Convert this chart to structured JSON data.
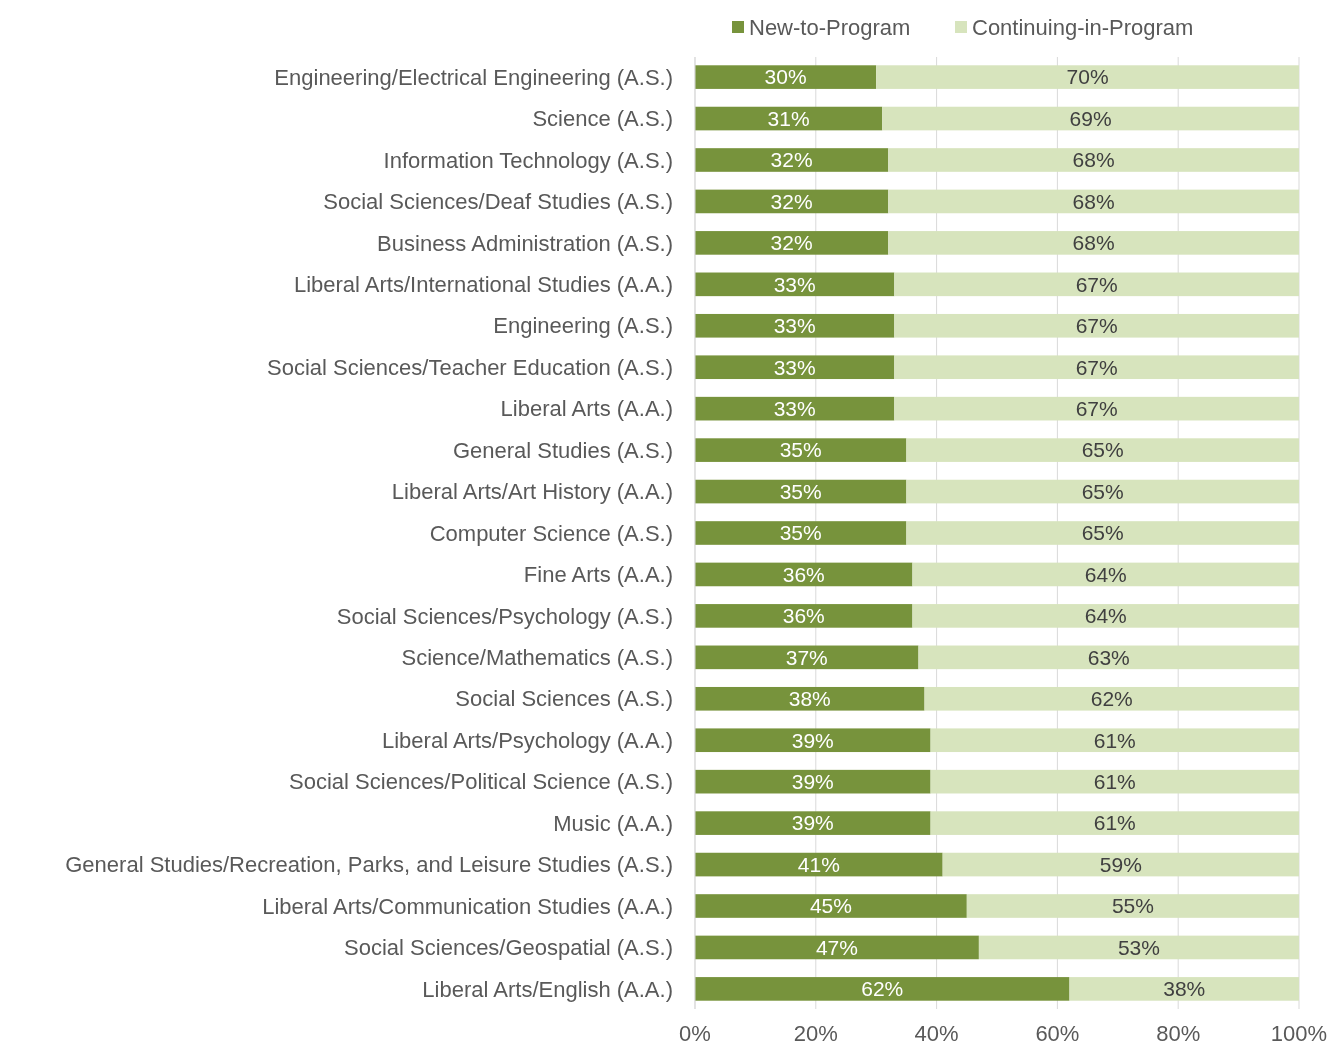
{
  "chart_data": {
    "type": "bar",
    "orientation": "horizontal",
    "stacked": true,
    "categories": [
      "Engineering/Electrical Engineering (A.S.)",
      "Science (A.S.)",
      "Information Technology (A.S.)",
      "Social Sciences/Deaf Studies (A.S.)",
      "Business Administration (A.S.)",
      "Liberal Arts/International Studies (A.A.)",
      "Engineering (A.S.)",
      "Social Sciences/Teacher Education (A.S.)",
      "Liberal Arts (A.A.)",
      "General Studies (A.S.)",
      "Liberal Arts/Art History (A.A.)",
      "Computer Science (A.S.)",
      "Fine Arts (A.A.)",
      "Social Sciences/Psychology (A.S.)",
      "Science/Mathematics (A.S.)",
      "Social Sciences (A.S.)",
      "Liberal Arts/Psychology (A.A.)",
      "Social Sciences/Political Science (A.S.)",
      "Music (A.A.)",
      "General Studies/Recreation, Parks, and Leisure Studies (A.S.)",
      "Liberal Arts/Communication Studies (A.A.)",
      "Social Sciences/Geospatial (A.S.)",
      "Liberal Arts/English (A.A.)"
    ],
    "series": [
      {
        "name": "New-to-Program",
        "color": "#77933c",
        "values": [
          30,
          31,
          32,
          32,
          32,
          33,
          33,
          33,
          33,
          35,
          35,
          35,
          36,
          36,
          37,
          38,
          39,
          39,
          39,
          41,
          45,
          47,
          62
        ],
        "value_labels": [
          "30%",
          "31%",
          "32%",
          "32%",
          "32%",
          "33%",
          "33%",
          "33%",
          "33%",
          "35%",
          "35%",
          "35%",
          "36%",
          "36%",
          "37%",
          "38%",
          "39%",
          "39%",
          "39%",
          "41%",
          "45%",
          "47%",
          "62%"
        ]
      },
      {
        "name": "Continuing-in-Program",
        "color": "#d7e4bd",
        "values": [
          70,
          69,
          68,
          68,
          68,
          67,
          67,
          67,
          67,
          65,
          65,
          65,
          64,
          64,
          63,
          62,
          61,
          61,
          61,
          59,
          55,
          53,
          38
        ],
        "value_labels": [
          "70%",
          "69%",
          "68%",
          "68%",
          "68%",
          "67%",
          "67%",
          "67%",
          "67%",
          "65%",
          "65%",
          "65%",
          "64%",
          "64%",
          "63%",
          "62%",
          "61%",
          "61%",
          "61%",
          "59%",
          "55%",
          "53%",
          "38%"
        ]
      }
    ],
    "xlim": [
      0,
      100
    ],
    "xticks": [
      {
        "value": 0,
        "label": "0%"
      },
      {
        "value": 20,
        "label": "20%"
      },
      {
        "value": 40,
        "label": "40%"
      },
      {
        "value": 60,
        "label": "60%"
      },
      {
        "value": 80,
        "label": "80%"
      },
      {
        "value": 100,
        "label": "100%"
      }
    ],
    "grid": "x",
    "legend": "top"
  }
}
